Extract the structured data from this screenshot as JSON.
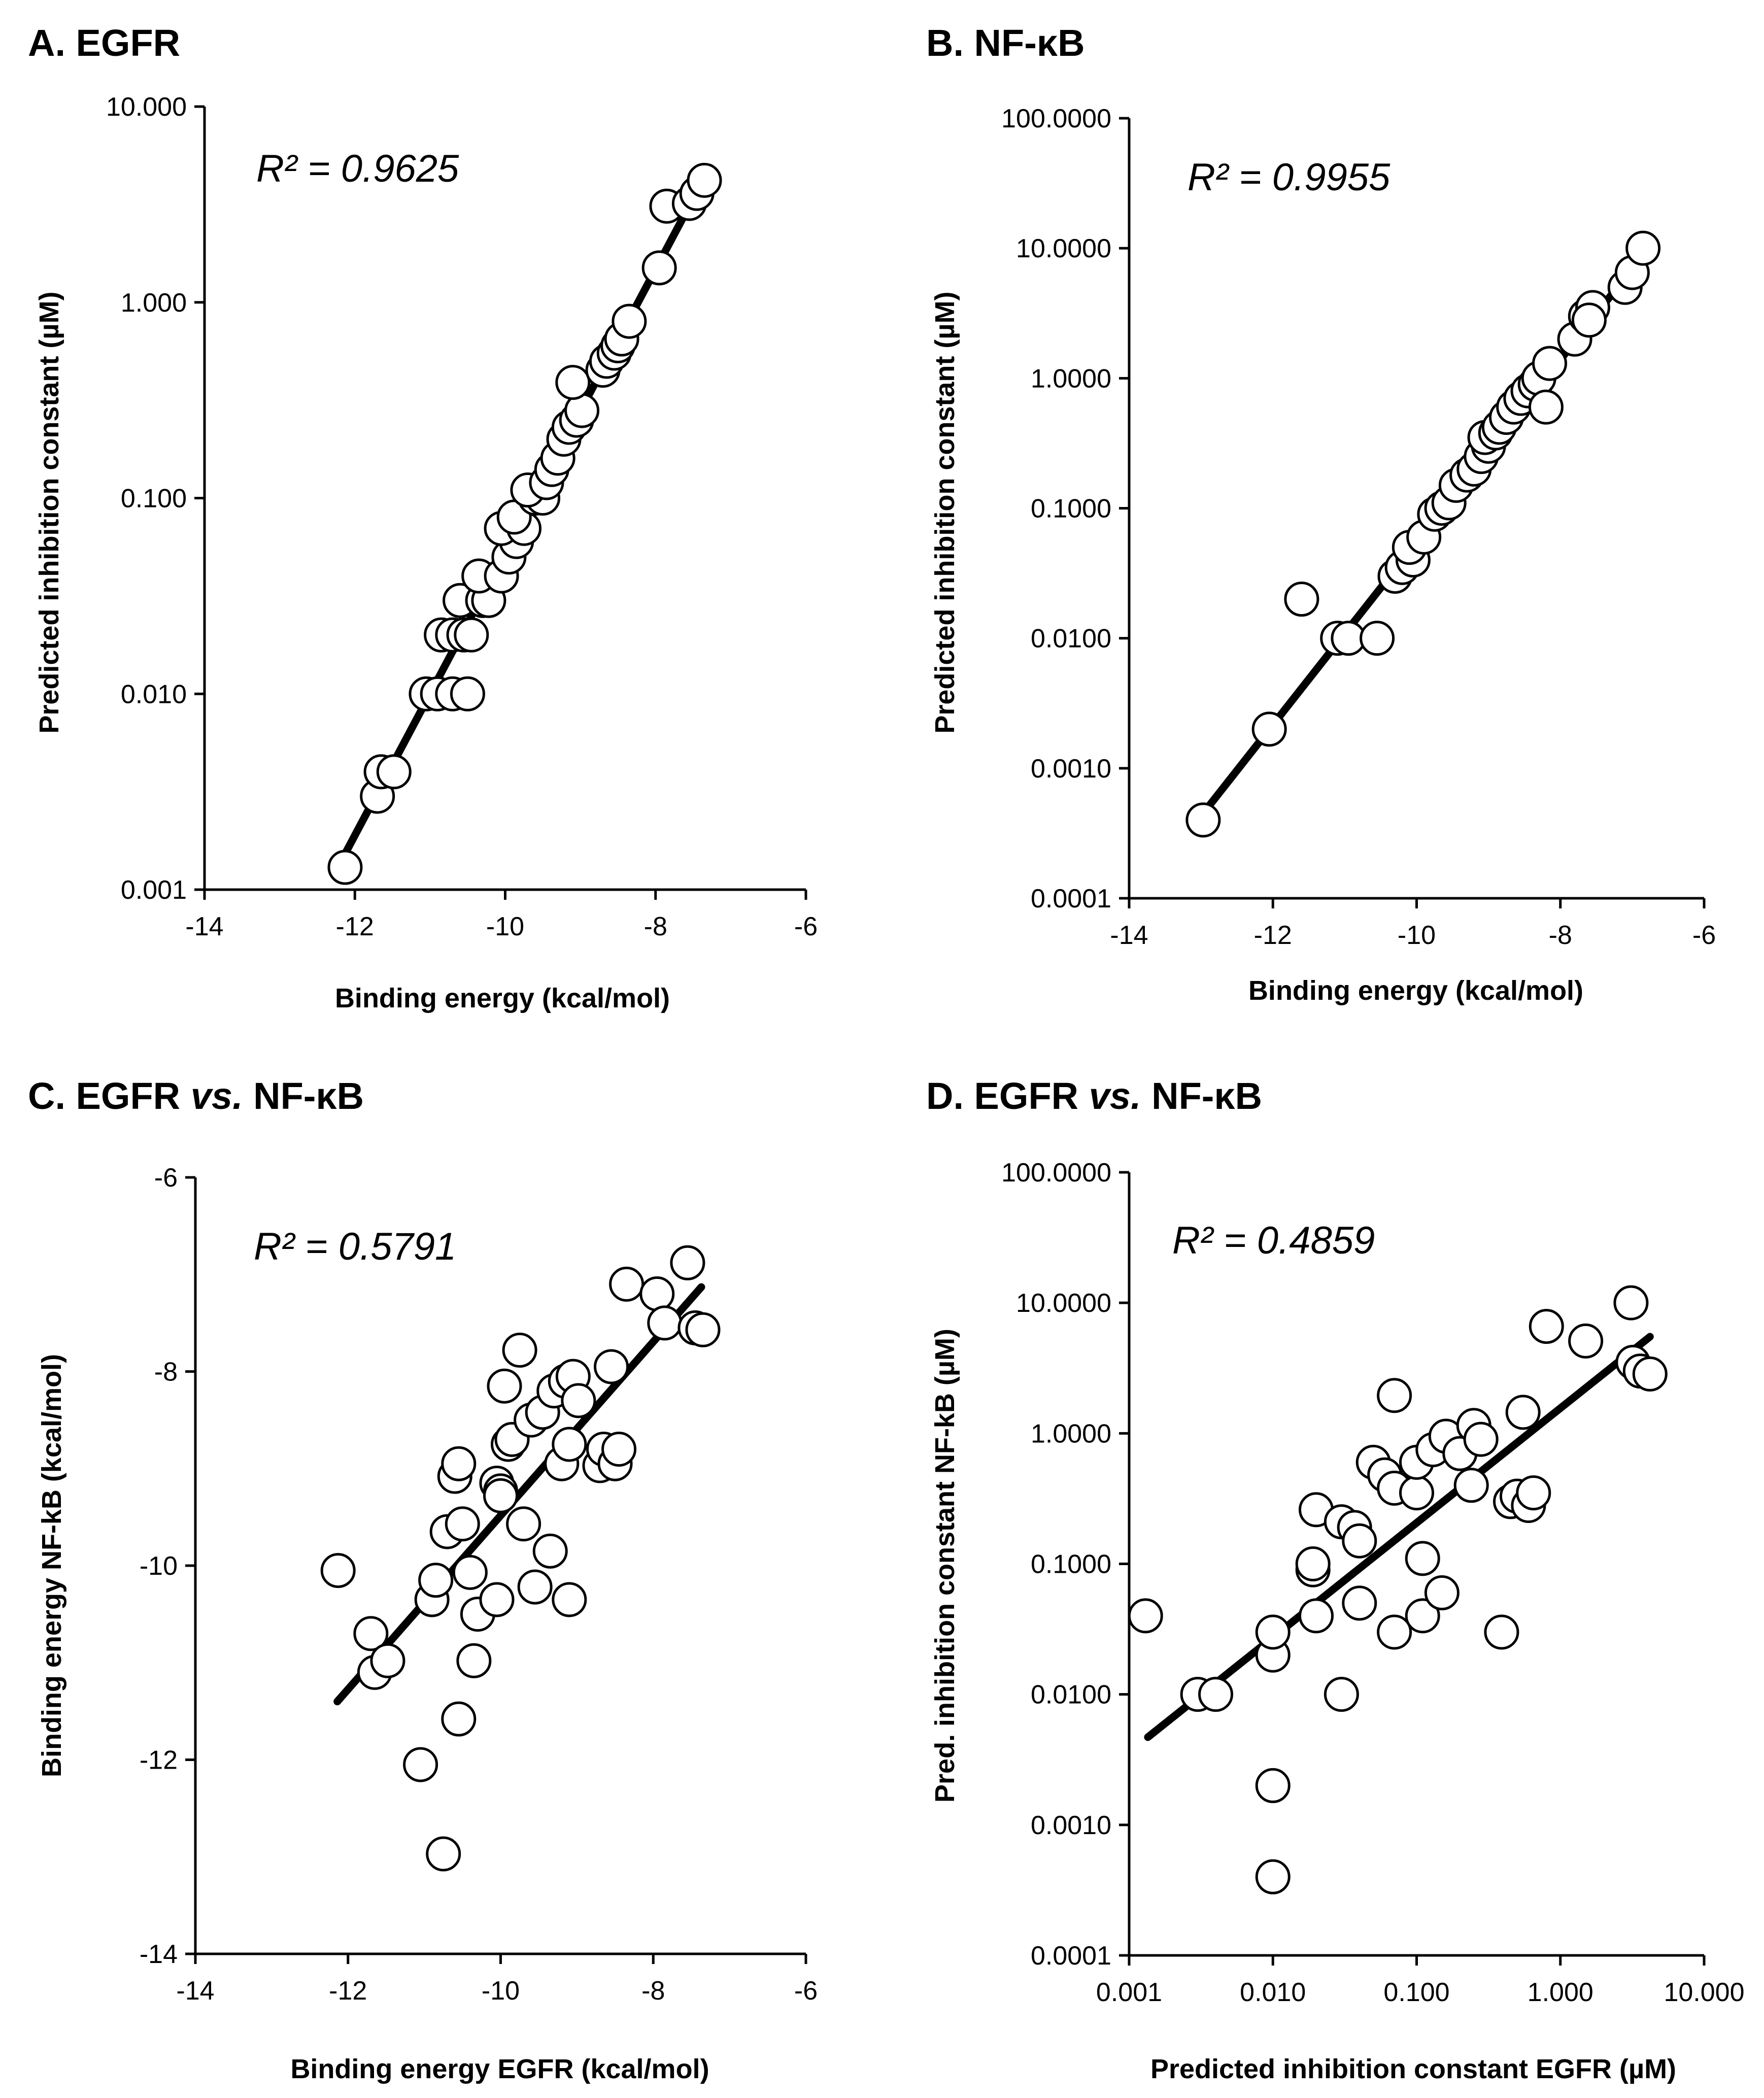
{
  "chart_data": [
    {
      "id": "A",
      "type": "scatter",
      "panel_label": "A. EGFR",
      "r2_text": "R² = 0.9625",
      "xlabel": "Binding energy (kcal/mol)",
      "ylabel": "Predicted inhibition constant (µM)",
      "xscale": "linear",
      "yscale": "log",
      "xlim": [
        -14,
        -6
      ],
      "ylim": [
        0.001,
        10
      ],
      "xticks": [
        -14,
        -12,
        -10,
        -8,
        -6
      ],
      "xtick_labels": [
        "-14",
        "-12",
        "-10",
        "-8",
        "-6"
      ],
      "yticks": [
        0.001,
        0.01,
        0.1,
        1,
        10
      ],
      "ytick_labels": [
        "0.001",
        "0.010",
        "0.100",
        "1.000",
        "10.000"
      ],
      "grid": false,
      "trendline": {
        "x": [
          -12.14,
          -7.37
        ],
        "y": [
          0.0015,
          4.2
        ]
      },
      "points": [
        {
          "x": -12.13,
          "y": 0.0013
        },
        {
          "x": -11.7,
          "y": 0.003
        },
        {
          "x": -11.65,
          "y": 0.004
        },
        {
          "x": -11.48,
          "y": 0.004
        },
        {
          "x": -11.05,
          "y": 0.01
        },
        {
          "x": -10.9,
          "y": 0.01
        },
        {
          "x": -10.7,
          "y": 0.01
        },
        {
          "x": -10.5,
          "y": 0.01
        },
        {
          "x": -10.85,
          "y": 0.02
        },
        {
          "x": -10.7,
          "y": 0.02
        },
        {
          "x": -10.55,
          "y": 0.02
        },
        {
          "x": -10.45,
          "y": 0.02
        },
        {
          "x": -10.6,
          "y": 0.03
        },
        {
          "x": -10.3,
          "y": 0.03
        },
        {
          "x": -10.22,
          "y": 0.03
        },
        {
          "x": -10.35,
          "y": 0.04
        },
        {
          "x": -10.05,
          "y": 0.04
        },
        {
          "x": -9.95,
          "y": 0.05
        },
        {
          "x": -9.85,
          "y": 0.06
        },
        {
          "x": -10.05,
          "y": 0.07
        },
        {
          "x": -9.75,
          "y": 0.07
        },
        {
          "x": -9.88,
          "y": 0.08
        },
        {
          "x": -9.6,
          "y": 0.1
        },
        {
          "x": -9.5,
          "y": 0.1
        },
        {
          "x": -9.7,
          "y": 0.11
        },
        {
          "x": -9.45,
          "y": 0.12
        },
        {
          "x": -9.38,
          "y": 0.14
        },
        {
          "x": -9.3,
          "y": 0.16
        },
        {
          "x": -9.22,
          "y": 0.2
        },
        {
          "x": -9.15,
          "y": 0.23
        },
        {
          "x": -9.05,
          "y": 0.25
        },
        {
          "x": -8.98,
          "y": 0.28
        },
        {
          "x": -9.1,
          "y": 0.39
        },
        {
          "x": -8.7,
          "y": 0.45
        },
        {
          "x": -8.65,
          "y": 0.5
        },
        {
          "x": -8.55,
          "y": 0.55
        },
        {
          "x": -8.5,
          "y": 0.6
        },
        {
          "x": -8.45,
          "y": 0.65
        },
        {
          "x": -8.35,
          "y": 0.8
        },
        {
          "x": -7.95,
          "y": 1.5
        },
        {
          "x": -7.85,
          "y": 3.1
        },
        {
          "x": -7.55,
          "y": 3.2
        },
        {
          "x": -7.45,
          "y": 3.6
        },
        {
          "x": -7.35,
          "y": 4.2
        }
      ]
    },
    {
      "id": "B",
      "type": "scatter",
      "panel_label": "B. NF-κB",
      "r2_text": "R² = 0.9955",
      "xlabel": "Binding energy (kcal/mol)",
      "ylabel": "Predicted inhibition constant (µM)",
      "xscale": "linear",
      "yscale": "log",
      "xlim": [
        -14,
        -6
      ],
      "ylim": [
        0.0001,
        100
      ],
      "xticks": [
        -14,
        -12,
        -10,
        -8,
        -6
      ],
      "xtick_labels": [
        "-14",
        "-12",
        "-10",
        "-8",
        "-6"
      ],
      "yticks": [
        0.0001,
        0.001,
        0.01,
        0.1,
        1,
        10,
        100
      ],
      "ytick_labels": [
        "0.0001",
        "0.0010",
        "0.0100",
        "0.1000",
        "1.0000",
        "10.0000",
        "100.0000"
      ],
      "grid": false,
      "trendline": {
        "x": [
          -12.97,
          -6.88
        ],
        "y": [
          0.00045,
          8.5
        ]
      },
      "points": [
        {
          "x": -12.97,
          "y": 0.0004
        },
        {
          "x": -12.05,
          "y": 0.002
        },
        {
          "x": -11.6,
          "y": 0.02
        },
        {
          "x": -11.1,
          "y": 0.01
        },
        {
          "x": -10.95,
          "y": 0.01
        },
        {
          "x": -10.55,
          "y": 0.01
        },
        {
          "x": -10.3,
          "y": 0.03
        },
        {
          "x": -10.2,
          "y": 0.035
        },
        {
          "x": -10.05,
          "y": 0.04
        },
        {
          "x": -10.1,
          "y": 0.05
        },
        {
          "x": -9.9,
          "y": 0.06
        },
        {
          "x": -9.75,
          "y": 0.09
        },
        {
          "x": -9.65,
          "y": 0.1
        },
        {
          "x": -9.55,
          "y": 0.11
        },
        {
          "x": -9.45,
          "y": 0.15
        },
        {
          "x": -9.3,
          "y": 0.18
        },
        {
          "x": -9.2,
          "y": 0.2
        },
        {
          "x": -9.1,
          "y": 0.25
        },
        {
          "x": -9.0,
          "y": 0.3
        },
        {
          "x": -9.05,
          "y": 0.35
        },
        {
          "x": -8.9,
          "y": 0.38
        },
        {
          "x": -8.85,
          "y": 0.42
        },
        {
          "x": -8.75,
          "y": 0.5
        },
        {
          "x": -8.65,
          "y": 0.6
        },
        {
          "x": -8.55,
          "y": 0.7
        },
        {
          "x": -8.45,
          "y": 0.8
        },
        {
          "x": -8.35,
          "y": 0.9
        },
        {
          "x": -8.3,
          "y": 1.0
        },
        {
          "x": -8.2,
          "y": 0.6
        },
        {
          "x": -8.15,
          "y": 1.3
        },
        {
          "x": -7.8,
          "y": 2.0
        },
        {
          "x": -7.65,
          "y": 3.0
        },
        {
          "x": -7.55,
          "y": 3.5
        },
        {
          "x": -7.6,
          "y": 2.8
        },
        {
          "x": -7.1,
          "y": 5.0
        },
        {
          "x": -7.0,
          "y": 6.5
        },
        {
          "x": -6.85,
          "y": 10.0
        }
      ]
    },
    {
      "id": "C",
      "type": "scatter",
      "panel_label": "C. EGFR vs. NF-κB",
      "panel_label_parts": {
        "pre": "C. EGFR ",
        "em": "vs.",
        "post": " NF-κB"
      },
      "r2_text": "R² = 0.5791",
      "xlabel": "Binding energy EGFR (kcal/mol)",
      "ylabel": "Binding energy NF-kB (kcal/mol)",
      "xscale": "linear",
      "yscale": "linear",
      "xlim": [
        -14,
        -6
      ],
      "ylim": [
        -14,
        -6
      ],
      "xticks": [
        -14,
        -12,
        -10,
        -8,
        -6
      ],
      "xtick_labels": [
        "-14",
        "-12",
        "-10",
        "-8",
        "-6"
      ],
      "yticks": [
        -14,
        -12,
        -10,
        -8,
        -6
      ],
      "ytick_labels": [
        "-14",
        "-12",
        "-10",
        "-8",
        "-6"
      ],
      "grid": false,
      "trendline": {
        "x": [
          -12.14,
          -7.37
        ],
        "y": [
          -11.4,
          -7.13
        ]
      },
      "points": [
        {
          "x": -12.13,
          "y": -10.05
        },
        {
          "x": -11.7,
          "y": -10.7
        },
        {
          "x": -11.65,
          "y": -11.1
        },
        {
          "x": -11.48,
          "y": -10.98
        },
        {
          "x": -11.05,
          "y": -12.05
        },
        {
          "x": -10.9,
          "y": -10.35
        },
        {
          "x": -10.85,
          "y": -10.15
        },
        {
          "x": -10.75,
          "y": -12.97
        },
        {
          "x": -10.7,
          "y": -9.65
        },
        {
          "x": -10.6,
          "y": -9.08
        },
        {
          "x": -10.55,
          "y": -8.95
        },
        {
          "x": -10.55,
          "y": -11.58
        },
        {
          "x": -10.5,
          "y": -9.57
        },
        {
          "x": -10.4,
          "y": -10.07
        },
        {
          "x": -10.35,
          "y": -10.98
        },
        {
          "x": -10.3,
          "y": -10.5
        },
        {
          "x": -10.05,
          "y": -10.35
        },
        {
          "x": -10.05,
          "y": -9.15
        },
        {
          "x": -10.0,
          "y": -9.23
        },
        {
          "x": -10.0,
          "y": -9.28
        },
        {
          "x": -9.95,
          "y": -8.15
        },
        {
          "x": -9.9,
          "y": -8.75
        },
        {
          "x": -9.85,
          "y": -8.7
        },
        {
          "x": -9.75,
          "y": -7.78
        },
        {
          "x": -9.7,
          "y": -9.57
        },
        {
          "x": -9.6,
          "y": -8.5
        },
        {
          "x": -9.55,
          "y": -10.22
        },
        {
          "x": -9.45,
          "y": -8.42
        },
        {
          "x": -9.35,
          "y": -9.85
        },
        {
          "x": -9.3,
          "y": -8.2
        },
        {
          "x": -9.2,
          "y": -8.95
        },
        {
          "x": -9.15,
          "y": -8.1
        },
        {
          "x": -9.1,
          "y": -10.35
        },
        {
          "x": -9.1,
          "y": -8.75
        },
        {
          "x": -9.05,
          "y": -8.05
        },
        {
          "x": -8.98,
          "y": -8.3
        },
        {
          "x": -8.7,
          "y": -8.97
        },
        {
          "x": -8.65,
          "y": -8.8
        },
        {
          "x": -8.55,
          "y": -7.95
        },
        {
          "x": -8.5,
          "y": -8.95
        },
        {
          "x": -8.45,
          "y": -8.8
        },
        {
          "x": -8.35,
          "y": -7.1
        },
        {
          "x": -7.95,
          "y": -7.2
        },
        {
          "x": -7.85,
          "y": -7.5
        },
        {
          "x": -7.55,
          "y": -6.88
        },
        {
          "x": -7.45,
          "y": -7.55
        },
        {
          "x": -7.35,
          "y": -7.57
        }
      ]
    },
    {
      "id": "D",
      "type": "scatter",
      "panel_label": "D. EGFR vs. NF-κB",
      "panel_label_parts": {
        "pre": "D. EGFR ",
        "em": "vs.",
        "post": " NF-κB"
      },
      "r2_text": "R² = 0.4859",
      "xlabel": "Predicted inhibition constant EGFR (µM)",
      "ylabel": "Pred. inhibition constant NF-kB (µM)",
      "xscale": "log",
      "yscale": "log",
      "xlim": [
        0.001,
        10
      ],
      "ylim": [
        0.0001,
        100
      ],
      "xticks": [
        0.001,
        0.01,
        0.1,
        1,
        10
      ],
      "xtick_labels": [
        "0.001",
        "0.010",
        "0.100",
        "1.000",
        "10.000"
      ],
      "yticks": [
        0.0001,
        0.001,
        0.01,
        0.1,
        1,
        10,
        100
      ],
      "ytick_labels": [
        "0.0001",
        "0.0010",
        "0.0100",
        "0.1000",
        "1.0000",
        "10.0000",
        "100.0000"
      ],
      "grid": false,
      "trendline": {
        "x": [
          0.00135,
          4.2
        ],
        "y": [
          0.0047,
          5.5
        ]
      },
      "points": [
        {
          "x": 0.0013,
          "y": 0.04
        },
        {
          "x": 0.003,
          "y": 0.01
        },
        {
          "x": 0.004,
          "y": 0.01
        },
        {
          "x": 0.01,
          "y": 0.0004
        },
        {
          "x": 0.01,
          "y": 0.002
        },
        {
          "x": 0.01,
          "y": 0.02
        },
        {
          "x": 0.01,
          "y": 0.03
        },
        {
          "x": 0.02,
          "y": 0.04
        },
        {
          "x": 0.019,
          "y": 0.09
        },
        {
          "x": 0.019,
          "y": 0.1
        },
        {
          "x": 0.02,
          "y": 0.26
        },
        {
          "x": 0.03,
          "y": 0.01
        },
        {
          "x": 0.03,
          "y": 0.21
        },
        {
          "x": 0.037,
          "y": 0.19
        },
        {
          "x": 0.04,
          "y": 0.05
        },
        {
          "x": 0.04,
          "y": 0.15
        },
        {
          "x": 0.05,
          "y": 0.6
        },
        {
          "x": 0.06,
          "y": 0.48
        },
        {
          "x": 0.07,
          "y": 0.03
        },
        {
          "x": 0.07,
          "y": 0.38
        },
        {
          "x": 0.07,
          "y": 1.95
        },
        {
          "x": 0.1,
          "y": 0.35
        },
        {
          "x": 0.11,
          "y": 0.04
        },
        {
          "x": 0.1,
          "y": 0.6
        },
        {
          "x": 0.11,
          "y": 0.11
        },
        {
          "x": 0.13,
          "y": 0.75
        },
        {
          "x": 0.15,
          "y": 0.06
        },
        {
          "x": 0.16,
          "y": 0.95
        },
        {
          "x": 0.2,
          "y": 0.7
        },
        {
          "x": 0.24,
          "y": 0.4
        },
        {
          "x": 0.25,
          "y": 1.15
        },
        {
          "x": 0.28,
          "y": 0.9
        },
        {
          "x": 0.39,
          "y": 0.03
        },
        {
          "x": 0.45,
          "y": 0.3
        },
        {
          "x": 0.5,
          "y": 0.33
        },
        {
          "x": 0.55,
          "y": 1.45
        },
        {
          "x": 0.6,
          "y": 0.28
        },
        {
          "x": 0.65,
          "y": 0.35
        },
        {
          "x": 0.8,
          "y": 6.6
        },
        {
          "x": 1.5,
          "y": 5.1
        },
        {
          "x": 3.1,
          "y": 10.0
        },
        {
          "x": 3.2,
          "y": 3.5
        },
        {
          "x": 3.6,
          "y": 3.0
        },
        {
          "x": 4.2,
          "y": 2.85
        }
      ]
    }
  ]
}
